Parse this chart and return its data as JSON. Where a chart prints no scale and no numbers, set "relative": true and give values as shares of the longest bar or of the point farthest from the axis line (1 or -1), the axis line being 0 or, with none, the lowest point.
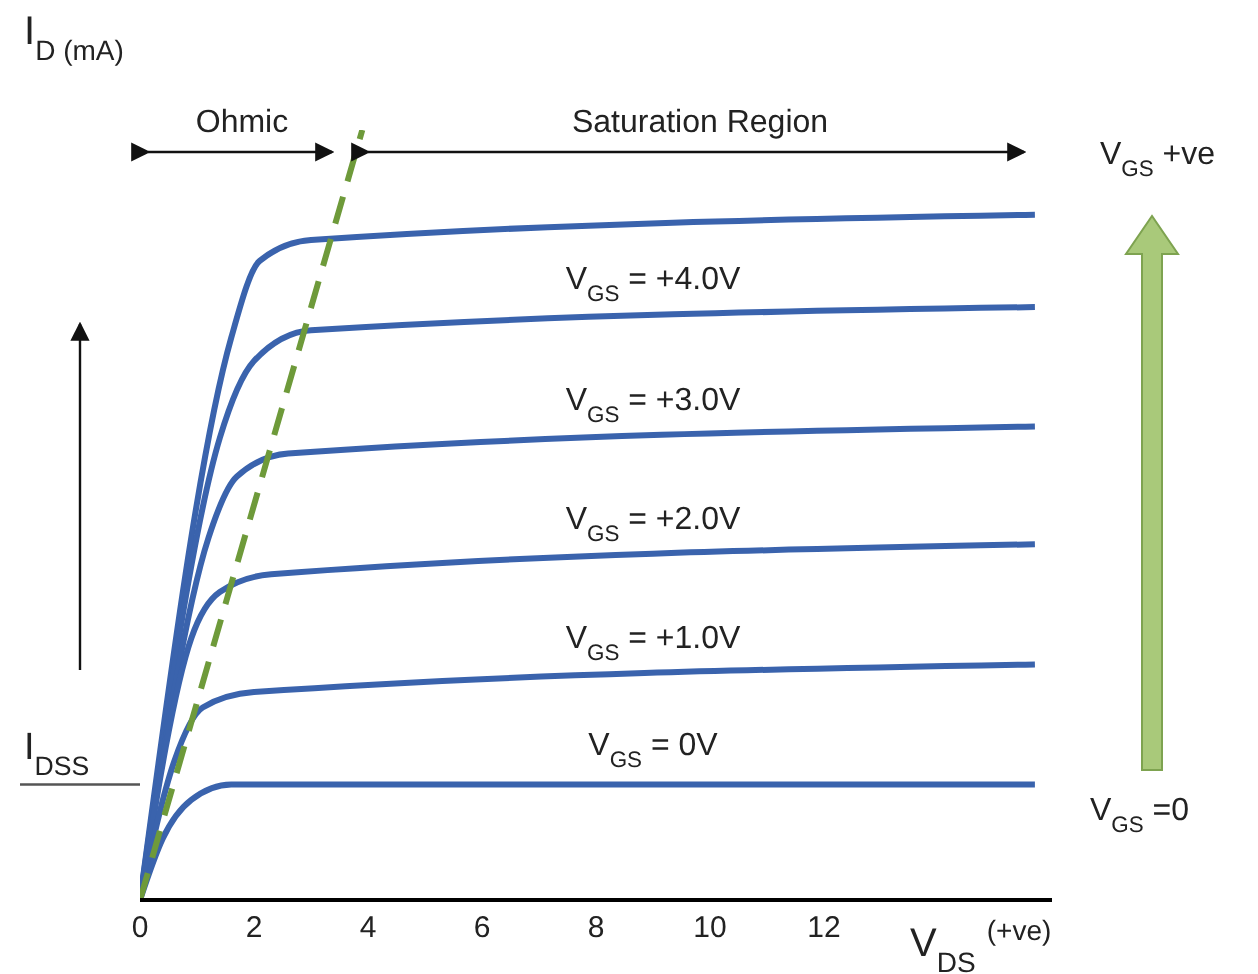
{
  "chart_data": {
    "type": "line",
    "relative": true,
    "xlabel": "V$_{DS}$ $^{(+ve)}$",
    "ylabel": "I$_{D (mA)}$",
    "xlim": [
      0,
      16
    ],
    "xticks": [
      0,
      2,
      4,
      6,
      8,
      10,
      12
    ],
    "grid": false,
    "legend": false,
    "marker": "none",
    "line_style": "solid",
    "series": [
      {
        "color": "#3a63ad",
        "x": [
          0,
          1.6,
          2.1,
          3.0,
          15.7
        ],
        "values": [
          0,
          0.73,
          0.83,
          0.857,
          0.89
        ]
      },
      {
        "name": "V$_{GS}$ = +4.0V",
        "color": "#3a63ad",
        "x": [
          0,
          1.4,
          2.0,
          3.0,
          15.7
        ],
        "values": [
          0,
          0.6,
          0.7,
          0.74,
          0.77
        ]
      },
      {
        "name": "V$_{GS}$ = +3.0V",
        "color": "#3a63ad",
        "x": [
          0,
          1.2,
          1.7,
          2.6,
          15.7
        ],
        "values": [
          0,
          0.47,
          0.55,
          0.58,
          0.615
        ]
      },
      {
        "name": "V$_{GS}$ = +2.0V",
        "color": "#3a63ad",
        "x": [
          0,
          0.9,
          1.4,
          2.3,
          15.7
        ],
        "values": [
          0,
          0.34,
          0.4,
          0.423,
          0.462
        ]
      },
      {
        "name": "V$_{GS}$ = +1.0V",
        "color": "#3a63ad",
        "x": [
          0,
          0.6,
          1.1,
          2.0,
          15.7
        ],
        "values": [
          0,
          0.18,
          0.25,
          0.27,
          0.306
        ]
      },
      {
        "name": "V$_{GS}$ = 0V",
        "color": "#3a63ad",
        "x": [
          0,
          0.4,
          0.9,
          1.6,
          15.7
        ],
        "values": [
          0,
          0.08,
          0.13,
          0.15,
          0.15
        ]
      },
      {
        "color": "#6e9a3a",
        "line_style": "dashed",
        "x": [
          0,
          3.9
        ],
        "values": [
          0,
          1
        ]
      }
    ],
    "ref_lines": [
      {
        "axis": "y",
        "value": 0.15,
        "label": "I$_{DSS}$"
      }
    ],
    "annotations": [
      "Ohmic",
      "Saturation Region",
      "V$_{GS}$ +ve",
      "V$_{GS}$ =0"
    ]
  }
}
